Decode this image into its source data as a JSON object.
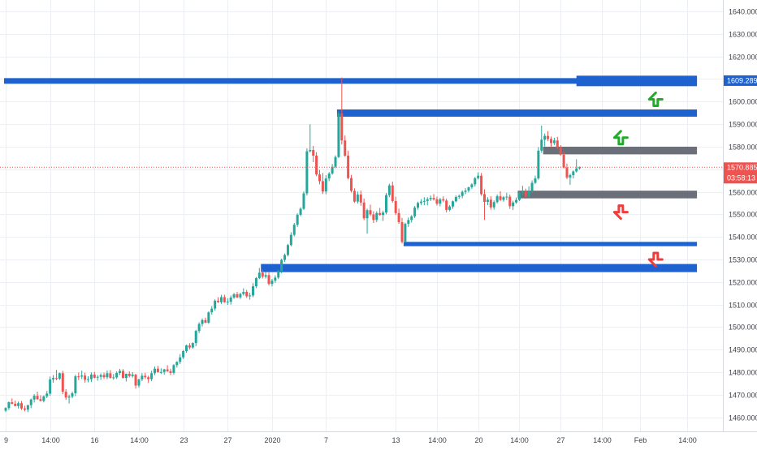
{
  "chart_data": {
    "type": "candlestick",
    "title": "",
    "xlabel": "",
    "ylabel": "",
    "ylim": [
      1455,
      1645
    ],
    "grid": true,
    "y_ticks": [
      1640,
      1630,
      1620,
      1610,
      1600,
      1590,
      1580,
      1570,
      1560,
      1550,
      1540,
      1530,
      1520,
      1510,
      1500,
      1490,
      1480,
      1470,
      1460
    ],
    "y_tick_labels": [
      "1640.000",
      "1630.000",
      "1620.000",
      "1610.000",
      "1600.000",
      "1590.000",
      "1580.000",
      "1570.000",
      "1560.000",
      "1550.000",
      "1540.000",
      "1530.000",
      "1520.000",
      "1510.000",
      "1500.000",
      "1490.000",
      "1480.000",
      "1470.000",
      "1460.000"
    ],
    "x_ticks": [
      {
        "label": "9",
        "index": 0
      },
      {
        "label": "14:00",
        "index": 14
      },
      {
        "label": "16",
        "index": 28
      },
      {
        "label": "14:00",
        "index": 42
      },
      {
        "label": "23",
        "index": 56
      },
      {
        "label": "27",
        "index": 70
      },
      {
        "label": "2020",
        "index": 84
      },
      {
        "label": "7",
        "index": 101
      },
      {
        "label": "13",
        "index": 123
      },
      {
        "label": "14:00",
        "index": 136
      },
      {
        "label": "20",
        "index": 149
      },
      {
        "label": "14:00",
        "index": 162
      },
      {
        "label": "27",
        "index": 175
      },
      {
        "label": "14:00",
        "index": 188
      },
      {
        "label": "Feb",
        "index": 200
      },
      {
        "label": "14:00",
        "index": 215
      }
    ],
    "x_slots": 228,
    "price_label": {
      "value": "1570.885",
      "countdown": "03:58:13",
      "price": 1570.885,
      "color": "#ef5350"
    },
    "level_label": {
      "value": "1609.289",
      "price": 1609.289,
      "color": "#1e62d0"
    },
    "zones": [
      {
        "top": 1610.4,
        "bottom": 1607.9,
        "start": 0,
        "end": 218,
        "color": "#1e62d0",
        "thick_start": 180
      },
      {
        "top": 1596.5,
        "bottom": 1593.3,
        "start": 105,
        "end": 218,
        "color": "#1e62d0"
      },
      {
        "top": 1580.0,
        "bottom": 1576.6,
        "start": 170,
        "end": 218,
        "color": "#6b6f79"
      },
      {
        "top": 1560.5,
        "bottom": 1557.1,
        "start": 162,
        "end": 218,
        "color": "#6b6f79"
      },
      {
        "top": 1537.8,
        "bottom": 1535.9,
        "start": 126,
        "end": 218,
        "color": "#1e62d0"
      },
      {
        "top": 1528.0,
        "bottom": 1524.4,
        "start": 81,
        "end": 218,
        "color": "#1e62d0"
      }
    ],
    "arrows": [
      {
        "direction": "up",
        "slot": 205,
        "price": 1601,
        "color": "#22ab2a"
      },
      {
        "direction": "up",
        "slot": 194,
        "price": 1584,
        "color": "#22ab2a"
      },
      {
        "direction": "down",
        "slot": 194,
        "price": 1551,
        "color": "#ef3d3d"
      },
      {
        "direction": "down",
        "slot": 205,
        "price": 1530,
        "color": "#ef3d3d"
      }
    ],
    "colors": {
      "up": "#26a69a",
      "down": "#ef5350",
      "grid": "#eceff3",
      "axis_text": "#3b3f47"
    },
    "candles": [
      [
        1463.0,
        1464.44,
        1462.34,
        1464.16
      ],
      [
        1464.16,
        1467.03,
        1463.33,
        1466.71
      ],
      [
        1466.71,
        1468.38,
        1465.81,
        1466.01
      ],
      [
        1466.01,
        1467.41,
        1464.88,
        1465.03
      ],
      [
        1465.03,
        1467.04,
        1463.93,
        1466.29
      ],
      [
        1466.29,
        1467.24,
        1463.27,
        1463.94
      ],
      [
        1463.94,
        1465.16,
        1462.67,
        1463.42
      ],
      [
        1463.42,
        1465.56,
        1462.34,
        1465.43
      ],
      [
        1465.43,
        1468.34,
        1464.08,
        1467.92
      ],
      [
        1467.92,
        1470.3,
        1466.56,
        1469.56
      ],
      [
        1469.56,
        1471.4,
        1467.8,
        1468.05
      ],
      [
        1468.05,
        1469.81,
        1467.1,
        1467.3
      ],
      [
        1467.3,
        1469.8,
        1466.65,
        1469.32
      ],
      [
        1469.32,
        1471.72,
        1468.54,
        1470.56
      ],
      [
        1470.56,
        1478.1,
        1469.6,
        1476.81
      ],
      [
        1476.81,
        1478.74,
        1475.38,
        1477.45
      ],
      [
        1477.45,
        1481.03,
        1476.47,
        1477.17
      ],
      [
        1477.17,
        1479.86,
        1476.58,
        1479.6
      ],
      [
        1479.6,
        1480.65,
        1470.25,
        1471.37
      ],
      [
        1471.37,
        1472.52,
        1467.77,
        1468.79
      ],
      [
        1468.79,
        1470.12,
        1466.18,
        1469.23
      ],
      [
        1469.23,
        1471.45,
        1468.49,
        1470.69
      ],
      [
        1470.69,
        1478.9,
        1469.45,
        1478.2
      ],
      [
        1478.2,
        1479.89,
        1476.54,
        1478.1
      ],
      [
        1478.1,
        1480.73,
        1477.03,
        1478.54
      ],
      [
        1478.54,
        1479.78,
        1475.43,
        1476.68
      ],
      [
        1476.68,
        1478.22,
        1475.51,
        1476.94
      ],
      [
        1476.94,
        1479.94,
        1475.67,
        1478.97
      ],
      [
        1478.97,
        1480.14,
        1477.26,
        1477.6
      ],
      [
        1477.6,
        1478.77,
        1476.27,
        1477.99
      ],
      [
        1477.99,
        1479.48,
        1476.62,
        1478.77
      ],
      [
        1478.77,
        1479.82,
        1477.04,
        1477.81
      ],
      [
        1477.81,
        1480.78,
        1476.93,
        1479.55
      ],
      [
        1479.55,
        1480.94,
        1477.17,
        1477.55
      ],
      [
        1477.55,
        1479.25,
        1476.68,
        1477.72
      ],
      [
        1477.72,
        1480.41,
        1477.02,
        1479.69
      ],
      [
        1479.69,
        1481.49,
        1478.75,
        1480.61
      ],
      [
        1480.61,
        1481.41,
        1477.22,
        1477.48
      ],
      [
        1477.48,
        1479.43,
        1475.91,
        1479.35
      ],
      [
        1479.35,
        1480.41,
        1477.72,
        1478.32
      ],
      [
        1478.32,
        1480.04,
        1477.62,
        1478.98
      ],
      [
        1478.98,
        1479.28,
        1472.76,
        1474.1
      ],
      [
        1474.1,
        1477.12,
        1473.18,
        1476.83
      ],
      [
        1476.83,
        1479.61,
        1476.05,
        1478.44
      ],
      [
        1478.44,
        1479.75,
        1477.03,
        1477.81
      ],
      [
        1477.81,
        1478.5,
        1475.21,
        1476.96
      ],
      [
        1476.96,
        1480.62,
        1476.06,
        1479.59
      ],
      [
        1479.59,
        1482.51,
        1478.77,
        1481.58
      ],
      [
        1481.58,
        1482.83,
        1479.84,
        1480.05
      ],
      [
        1480.05,
        1481.77,
        1479.21,
        1480.12
      ],
      [
        1480.12,
        1481.52,
        1478.99,
        1481.27
      ],
      [
        1481.27,
        1483.13,
        1480.1,
        1480.47
      ],
      [
        1480.47,
        1481.57,
        1478.77,
        1479.73
      ],
      [
        1479.73,
        1483.6,
        1478.94,
        1483.16
      ],
      [
        1483.16,
        1484.91,
        1482.07,
        1484.61
      ],
      [
        1484.61,
        1488.07,
        1483.68,
        1486.63
      ],
      [
        1486.63,
        1489.87,
        1485.87,
        1489.4
      ],
      [
        1489.4,
        1492.27,
        1488.6,
        1491.88
      ],
      [
        1491.88,
        1492.88,
        1490.16,
        1490.97
      ],
      [
        1490.97,
        1493.27,
        1490.42,
        1492.94
      ],
      [
        1492.94,
        1498.8,
        1491.55,
        1498.32
      ],
      [
        1498.32,
        1502.17,
        1497.38,
        1501.41
      ],
      [
        1501.41,
        1503.87,
        1500.31,
        1503.14
      ],
      [
        1503.14,
        1504.2,
        1501.76,
        1501.97
      ],
      [
        1501.97,
        1506.98,
        1501.48,
        1506.57
      ],
      [
        1506.57,
        1509.36,
        1505.52,
        1508.22
      ],
      [
        1508.22,
        1512.31,
        1507.27,
        1511.74
      ],
      [
        1511.74,
        1513.3,
        1510.72,
        1511.08
      ],
      [
        1511.08,
        1514.32,
        1510.31,
        1513.3
      ],
      [
        1513.3,
        1514.4,
        1510.81,
        1511.06
      ],
      [
        1511.06,
        1512.77,
        1509.91,
        1511.28
      ],
      [
        1511.28,
        1514.02,
        1510.01,
        1513.13
      ],
      [
        1513.13,
        1515.17,
        1512.53,
        1514.6
      ],
      [
        1514.6,
        1515.66,
        1512.85,
        1513.2
      ],
      [
        1513.2,
        1515.26,
        1512.48,
        1514.7
      ],
      [
        1514.7,
        1517.22,
        1514.03,
        1515.63
      ],
      [
        1515.63,
        1516.54,
        1512.95,
        1513.69
      ],
      [
        1513.69,
        1515.26,
        1512.2,
        1514.06
      ],
      [
        1514.06,
        1519.52,
        1513.25,
        1518.12
      ],
      [
        1518.12,
        1522.22,
        1517.3,
        1521.73
      ],
      [
        1521.73,
        1526.22,
        1521.26,
        1524.15
      ],
      [
        1524.15,
        1525.47,
        1521.58,
        1522.35
      ],
      [
        1522.35,
        1524.64,
        1521.57,
        1523.08
      ],
      [
        1523.08,
        1524.31,
        1518.42,
        1519.16
      ],
      [
        1519.16,
        1521.35,
        1518.07,
        1520.6
      ],
      [
        1520.6,
        1522.96,
        1519.7,
        1521.98
      ],
      [
        1521.98,
        1525.51,
        1521.29,
        1524.9
      ],
      [
        1524.9,
        1530.4,
        1523.92,
        1529.82
      ],
      [
        1529.82,
        1532.64,
        1528.93,
        1532.0
      ],
      [
        1532.0,
        1536.92,
        1531.36,
        1536.39
      ],
      [
        1536.39,
        1542.04,
        1535.84,
        1540.93
      ],
      [
        1540.93,
        1546.16,
        1540.24,
        1545.36
      ],
      [
        1545.36,
        1550.44,
        1544.44,
        1549.83
      ],
      [
        1549.83,
        1553.16,
        1549.18,
        1552.49
      ],
      [
        1552.49,
        1560.17,
        1551.94,
        1559.31
      ],
      [
        1559.31,
        1579.24,
        1558.4,
        1577.98
      ],
      [
        1577.98,
        1589.91,
        1577.44,
        1578.54
      ],
      [
        1578.54,
        1580.36,
        1573.16,
        1576.04
      ],
      [
        1576.04,
        1577.54,
        1566.92,
        1567.7
      ],
      [
        1567.7,
        1569.65,
        1563.33,
        1564.72
      ],
      [
        1564.72,
        1568.34,
        1559.03,
        1560.12
      ],
      [
        1560.12,
        1567.37,
        1558.9,
        1565.91
      ],
      [
        1565.91,
        1568.75,
        1564.78,
        1568.09
      ],
      [
        1568.09,
        1572.33,
        1567.58,
        1571.11
      ],
      [
        1571.11,
        1576.16,
        1570.45,
        1575.4
      ],
      [
        1575.4,
        1595.63,
        1574.99,
        1594.77
      ],
      [
        1594.77,
        1610.72,
        1581.01,
        1582.79
      ],
      [
        1582.79,
        1584.96,
        1575.53,
        1576.03
      ],
      [
        1576.03,
        1578.23,
        1565.51,
        1566.07
      ],
      [
        1566.07,
        1567.49,
        1559.66,
        1560.41
      ],
      [
        1560.41,
        1561.55,
        1555.08,
        1555.65
      ],
      [
        1555.65,
        1560.13,
        1554.8,
        1558.79
      ],
      [
        1558.79,
        1560.55,
        1553.84,
        1555.24
      ],
      [
        1555.24,
        1557.02,
        1547.5,
        1548.28
      ],
      [
        1548.28,
        1552.56,
        1541.41,
        1551.85
      ],
      [
        1551.85,
        1554.28,
        1549.24,
        1549.99
      ],
      [
        1549.99,
        1551.4,
        1546.17,
        1547.53
      ],
      [
        1547.53,
        1551.37,
        1546.51,
        1550.6
      ],
      [
        1550.6,
        1552.88,
        1549.33,
        1549.76
      ],
      [
        1549.76,
        1551.66,
        1547.11,
        1550.81
      ],
      [
        1550.81,
        1559.47,
        1550.01,
        1558.53
      ],
      [
        1558.53,
        1563.6,
        1557.64,
        1562.83
      ],
      [
        1562.83,
        1564.55,
        1555.17,
        1555.89
      ],
      [
        1555.89,
        1557.83,
        1549.72,
        1550.54
      ],
      [
        1550.54,
        1552.55,
        1545.83,
        1546.52
      ],
      [
        1546.52,
        1548.4,
        1537.12,
        1537.78
      ],
      [
        1537.78,
        1546.33,
        1537.4,
        1545.79
      ],
      [
        1545.79,
        1548.6,
        1544.46,
        1547.51
      ],
      [
        1547.51,
        1549.68,
        1546.37,
        1549.12
      ],
      [
        1549.12,
        1553.71,
        1548.39,
        1552.99
      ],
      [
        1552.99,
        1555.63,
        1552.08,
        1555.04
      ],
      [
        1555.04,
        1556.78,
        1554.12,
        1555.64
      ],
      [
        1555.64,
        1557.63,
        1554.04,
        1555.93
      ],
      [
        1555.93,
        1557.61,
        1554.03,
        1556.7
      ],
      [
        1556.7,
        1558.39,
        1555.85,
        1557.28
      ],
      [
        1557.28,
        1559.02,
        1556.08,
        1556.65
      ],
      [
        1556.65,
        1557.87,
        1553.96,
        1554.77
      ],
      [
        1554.77,
        1557.32,
        1553.55,
        1556.69
      ],
      [
        1556.69,
        1557.99,
        1555.37,
        1556.12
      ],
      [
        1556.12,
        1557.01,
        1550.86,
        1551.98
      ],
      [
        1551.98,
        1554.12,
        1551.41,
        1553.49
      ],
      [
        1553.49,
        1556.14,
        1552.46,
        1555.79
      ],
      [
        1555.79,
        1558.4,
        1555.35,
        1557.72
      ],
      [
        1557.72,
        1558.84,
        1556.85,
        1558.17
      ],
      [
        1558.17,
        1560.61,
        1557.2,
        1559.96
      ],
      [
        1559.96,
        1561.6,
        1558.95,
        1560.55
      ],
      [
        1560.55,
        1562.23,
        1559.7,
        1562.02
      ],
      [
        1562.02,
        1563.81,
        1561.33,
        1563.28
      ],
      [
        1563.28,
        1566.56,
        1562.35,
        1566.04
      ],
      [
        1566.04,
        1568.63,
        1565.44,
        1567.14
      ],
      [
        1567.14,
        1568.34,
        1558.25,
        1558.97
      ],
      [
        1558.97,
        1561.1,
        1547.56,
        1555.54
      ],
      [
        1555.54,
        1557.61,
        1554.09,
        1556.52
      ],
      [
        1556.52,
        1557.99,
        1552.1,
        1553.11
      ],
      [
        1553.11,
        1556.17,
        1552.08,
        1555.44
      ],
      [
        1555.44,
        1558.83,
        1554.86,
        1558.0
      ],
      [
        1558.0,
        1560.22,
        1555.81,
        1556.4
      ],
      [
        1556.4,
        1558.11,
        1555.63,
        1557.62
      ],
      [
        1557.62,
        1559.54,
        1556.32,
        1557.84
      ],
      [
        1557.84,
        1558.79,
        1552.44,
        1553.61
      ],
      [
        1553.61,
        1556.04,
        1551.93,
        1555.27
      ],
      [
        1555.27,
        1557.52,
        1554.66,
        1556.4
      ],
      [
        1556.4,
        1560.14,
        1555.89,
        1559.55
      ],
      [
        1559.55,
        1562.64,
        1558.41,
        1560.09
      ],
      [
        1560.09,
        1561.42,
        1556.98,
        1557.93
      ],
      [
        1557.93,
        1562.42,
        1557.41,
        1560.2
      ],
      [
        1560.2,
        1565.04,
        1559.48,
        1563.99
      ],
      [
        1563.99,
        1567.15,
        1563.46,
        1565.93
      ],
      [
        1565.93,
        1579.82,
        1565.38,
        1578.24
      ],
      [
        1578.24,
        1589.34,
        1577.27,
        1583.11
      ],
      [
        1583.11,
        1585.81,
        1580.12,
        1584.78
      ],
      [
        1584.78,
        1586.9,
        1582.44,
        1583.42
      ],
      [
        1583.42,
        1584.48,
        1579.74,
        1581.62
      ],
      [
        1581.62,
        1583.97,
        1580.76,
        1582.76
      ],
      [
        1582.76,
        1584.4,
        1579.01,
        1579.65
      ],
      [
        1579.65,
        1580.69,
        1575.94,
        1576.45
      ],
      [
        1576.45,
        1577.91,
        1570.31,
        1570.76
      ],
      [
        1570.76,
        1572.53,
        1565.6,
        1566.35
      ],
      [
        1566.35,
        1568.01,
        1563.13,
        1567.36
      ],
      [
        1567.36,
        1569.47,
        1565.93,
        1569.04
      ],
      [
        1569.04,
        1574.44,
        1568.55,
        1570.4
      ],
      [
        1570.4,
        1571.22,
        1569.86,
        1570.89
      ]
    ]
  }
}
